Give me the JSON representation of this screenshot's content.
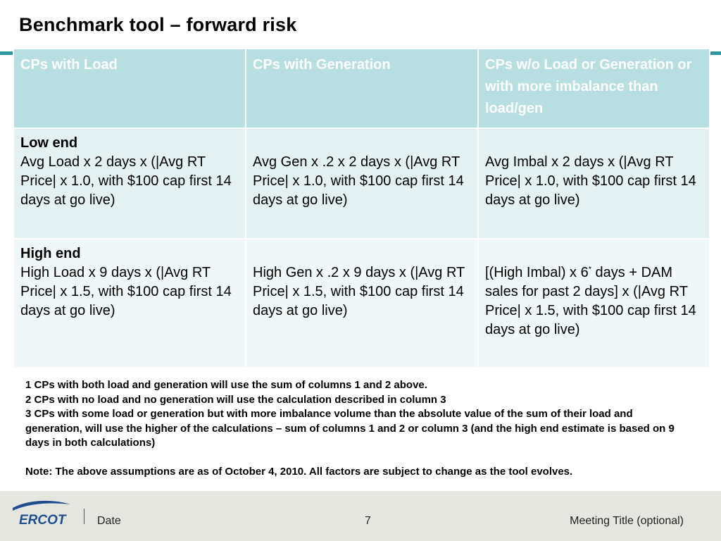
{
  "title": "Benchmark tool – forward risk",
  "table": {
    "headers": [
      "CPs with Load",
      "CPs with Generation",
      "CPs w/o Load or Generation or with more imbalance than load/gen"
    ],
    "low_end": {
      "label": "Low end",
      "cells": [
        "Avg Load x 2 days x (|Avg RT Price| x 1.0, with $100 cap first 14 days at go live)",
        "Avg Gen x .2 x 2 days x (|Avg RT Price| x 1.0, with $100 cap first 14 days at go live)",
        "Avg Imbal x 2 days x (|Avg RT Price| x 1.0, with $100 cap first 14 days at go live)"
      ]
    },
    "high_end": {
      "label": "High end",
      "cells": [
        "High Load x 9 days x (|Avg RT Price| x 1.5, with $100  cap first 14 days at go live)",
        "High Gen x .2 x 9 days x (|Avg RT Price| x 1.5, with $100 cap first 14 days at go live)"
      ],
      "cell3_pre": "[(High Imbal) x 6",
      "cell3_sup": "*",
      "cell3_post": " days + DAM sales for past 2 days] x (|Avg RT Price| x 1.5, with $100 cap first 14 days at go live)"
    }
  },
  "notes": [
    "1  CPs with both load and generation will use the sum of columns 1 and 2 above.",
    "2  CPs with no load and no generation will use the calculation described in column 3",
    "3  CPs with some load or generation but with more imbalance volume than the absolute value of the sum of their load and generation, will use the higher of the calculations – sum of columns 1 and 2 or column 3 (and the high end estimate is based on 9 days in both calculations)"
  ],
  "note_final": "Note:  The above assumptions are as of October 4, 2010.  All factors are subject to change as the tool evolves.",
  "footer": {
    "logo_text": "ERCOT",
    "date": "Date",
    "page": "7",
    "meeting": "Meeting Title (optional)"
  },
  "colors": {
    "header_bg": "#b7dfe1",
    "row1_bg": "#e3f1f2",
    "row2_bg": "#f0f7f8",
    "accent": "#2e96a3",
    "logo_blue": "#1d4f8f"
  }
}
